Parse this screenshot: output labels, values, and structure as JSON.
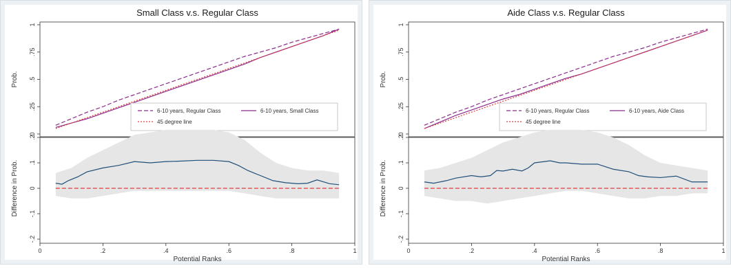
{
  "chart_data": [
    {
      "type": "line",
      "title": "Small Class v.s. Regular Class",
      "xlabel": "Potential Ranks",
      "xlim": [
        0,
        1
      ],
      "xticks": [
        "0",
        ".2",
        ".4",
        ".6",
        ".8",
        "1"
      ],
      "top": {
        "ylabel": "Prob.",
        "ylim": [
          0,
          1
        ],
        "yticks": [
          "0",
          ".25",
          ".5",
          ".75",
          "1"
        ],
        "legend": {
          "position": "bottom-right",
          "entries": [
            "6-10 years, Regular Class",
            "6-10 years, Small Class",
            "45 degree line"
          ]
        },
        "series": [
          {
            "name": "6-10 years, Regular Class",
            "color": "#8b2a8b",
            "dash": "dashed",
            "x": [
              0.05,
              0.1,
              0.15,
              0.2,
              0.25,
              0.3,
              0.35,
              0.4,
              0.45,
              0.5,
              0.55,
              0.6,
              0.65,
              0.7,
              0.75,
              0.8,
              0.85,
              0.9,
              0.95
            ],
            "y": [
              0.08,
              0.14,
              0.2,
              0.25,
              0.31,
              0.36,
              0.41,
              0.46,
              0.51,
              0.56,
              0.61,
              0.66,
              0.71,
              0.75,
              0.79,
              0.84,
              0.88,
              0.92,
              0.96
            ]
          },
          {
            "name": "6-10 years, Small Class",
            "color": "#8b2a8b",
            "dash": "solid",
            "x": [
              0.05,
              0.1,
              0.15,
              0.2,
              0.25,
              0.3,
              0.35,
              0.4,
              0.45,
              0.5,
              0.55,
              0.6,
              0.65,
              0.7,
              0.75,
              0.8,
              0.85,
              0.9,
              0.95
            ],
            "y": [
              0.06,
              0.1,
              0.14,
              0.19,
              0.24,
              0.29,
              0.34,
              0.39,
              0.44,
              0.49,
              0.54,
              0.59,
              0.64,
              0.7,
              0.75,
              0.8,
              0.85,
              0.9,
              0.96
            ]
          },
          {
            "name": "45 degree line",
            "color": "#e03c3c",
            "dash": "dotted",
            "x": [
              0.05,
              0.95
            ],
            "y": [
              0.05,
              0.95
            ]
          }
        ]
      },
      "bottom": {
        "ylabel": "Difference in Prob.",
        "ylim": [
          -0.2,
          0.2
        ],
        "yticks": [
          "-.2",
          "-.1",
          "0",
          ".1",
          ".2"
        ],
        "band": {
          "x": [
            0.05,
            0.1,
            0.15,
            0.2,
            0.25,
            0.3,
            0.35,
            0.4,
            0.45,
            0.5,
            0.55,
            0.6,
            0.65,
            0.7,
            0.75,
            0.8,
            0.85,
            0.9,
            0.95
          ],
          "upper": [
            0.06,
            0.08,
            0.12,
            0.15,
            0.18,
            0.21,
            0.22,
            0.23,
            0.23,
            0.23,
            0.23,
            0.22,
            0.19,
            0.14,
            0.1,
            0.08,
            0.07,
            0.07,
            0.06
          ],
          "lower": [
            -0.03,
            -0.04,
            -0.04,
            -0.03,
            -0.02,
            -0.01,
            -0.01,
            -0.01,
            -0.01,
            -0.01,
            -0.01,
            -0.01,
            -0.02,
            -0.03,
            -0.04,
            -0.04,
            -0.04,
            -0.04,
            -0.04
          ],
          "color": "#e6e6e6"
        },
        "series": [
          {
            "name": "",
            "color": "#1f4e79",
            "dash": "solid",
            "x": [
              0.05,
              0.07,
              0.09,
              0.12,
              0.15,
              0.2,
              0.25,
              0.3,
              0.35,
              0.4,
              0.45,
              0.5,
              0.55,
              0.6,
              0.63,
              0.66,
              0.7,
              0.74,
              0.78,
              0.82,
              0.85,
              0.88,
              0.92,
              0.95
            ],
            "y": [
              0.02,
              0.016,
              0.03,
              0.045,
              0.065,
              0.08,
              0.09,
              0.105,
              0.1,
              0.105,
              0.107,
              0.11,
              0.11,
              0.105,
              0.09,
              0.07,
              0.05,
              0.03,
              0.022,
              0.018,
              0.02,
              0.033,
              0.018,
              0.014
            ]
          },
          {
            "name": "",
            "color": "#e03c3c",
            "dash": "dashed",
            "x": [
              0.05,
              0.95
            ],
            "y": [
              0,
              0
            ]
          }
        ]
      }
    },
    {
      "type": "line",
      "title": "Aide Class v.s. Regular Class",
      "xlabel": "Potential Ranks",
      "xlim": [
        0,
        1
      ],
      "xticks": [
        "0",
        ".2",
        ".4",
        ".6",
        ".8",
        "1"
      ],
      "top": {
        "ylabel": "Prob.",
        "ylim": [
          0,
          1
        ],
        "yticks": [
          "0",
          ".25",
          ".5",
          ".75",
          "1"
        ],
        "legend": {
          "position": "bottom-right",
          "entries": [
            "6-10 years, Regular Class",
            "6-10 years, Aide Class",
            "45 degree line"
          ]
        },
        "series": [
          {
            "name": "6-10 years, Regular Class",
            "color": "#8b2a8b",
            "dash": "dashed",
            "x": [
              0.05,
              0.1,
              0.15,
              0.2,
              0.25,
              0.3,
              0.35,
              0.4,
              0.45,
              0.5,
              0.55,
              0.6,
              0.65,
              0.7,
              0.75,
              0.8,
              0.85,
              0.9,
              0.95
            ],
            "y": [
              0.08,
              0.14,
              0.2,
              0.25,
              0.31,
              0.36,
              0.41,
              0.46,
              0.51,
              0.56,
              0.61,
              0.66,
              0.71,
              0.75,
              0.79,
              0.84,
              0.88,
              0.92,
              0.96
            ]
          },
          {
            "name": "6-10 years, Aide Class",
            "color": "#8b2a8b",
            "dash": "solid",
            "x": [
              0.05,
              0.1,
              0.15,
              0.2,
              0.25,
              0.3,
              0.35,
              0.4,
              0.45,
              0.5,
              0.55,
              0.6,
              0.65,
              0.7,
              0.75,
              0.8,
              0.85,
              0.9,
              0.95
            ],
            "y": [
              0.05,
              0.11,
              0.17,
              0.22,
              0.27,
              0.32,
              0.36,
              0.41,
              0.46,
              0.51,
              0.55,
              0.6,
              0.65,
              0.7,
              0.75,
              0.8,
              0.85,
              0.9,
              0.95
            ]
          },
          {
            "name": "45 degree line",
            "color": "#e03c3c",
            "dash": "dotted",
            "x": [
              0.05,
              0.95
            ],
            "y": [
              0.05,
              0.95
            ]
          }
        ]
      },
      "bottom": {
        "ylabel": "Difference in Prob.",
        "ylim": [
          -0.2,
          0.2
        ],
        "yticks": [
          "-.2",
          "-.1",
          "0",
          ".1",
          ".2"
        ],
        "band": {
          "x": [
            0.05,
            0.1,
            0.15,
            0.2,
            0.25,
            0.3,
            0.35,
            0.4,
            0.45,
            0.5,
            0.55,
            0.6,
            0.65,
            0.7,
            0.75,
            0.8,
            0.85,
            0.9,
            0.95
          ],
          "upper": [
            0.07,
            0.08,
            0.1,
            0.12,
            0.15,
            0.18,
            0.2,
            0.22,
            0.23,
            0.23,
            0.23,
            0.22,
            0.2,
            0.17,
            0.13,
            0.1,
            0.09,
            0.08,
            0.07
          ],
          "lower": [
            -0.03,
            -0.04,
            -0.05,
            -0.05,
            -0.06,
            -0.05,
            -0.04,
            -0.03,
            -0.02,
            -0.01,
            -0.01,
            -0.02,
            -0.03,
            -0.04,
            -0.04,
            -0.03,
            -0.03,
            -0.02,
            -0.02
          ],
          "color": "#e6e6e6"
        },
        "series": [
          {
            "name": "",
            "color": "#1f4e79",
            "dash": "solid",
            "x": [
              0.05,
              0.08,
              0.12,
              0.15,
              0.2,
              0.23,
              0.26,
              0.28,
              0.3,
              0.33,
              0.36,
              0.38,
              0.4,
              0.45,
              0.48,
              0.5,
              0.55,
              0.6,
              0.65,
              0.7,
              0.73,
              0.76,
              0.8,
              0.85,
              0.9,
              0.95
            ],
            "y": [
              0.025,
              0.02,
              0.03,
              0.04,
              0.05,
              0.045,
              0.05,
              0.07,
              0.068,
              0.075,
              0.068,
              0.08,
              0.1,
              0.108,
              0.1,
              0.1,
              0.095,
              0.095,
              0.075,
              0.065,
              0.05,
              0.045,
              0.042,
              0.048,
              0.025,
              0.025
            ]
          },
          {
            "name": "",
            "color": "#e03c3c",
            "dash": "dashed",
            "x": [
              0.05,
              0.95
            ],
            "y": [
              0,
              0
            ]
          }
        ]
      }
    }
  ]
}
